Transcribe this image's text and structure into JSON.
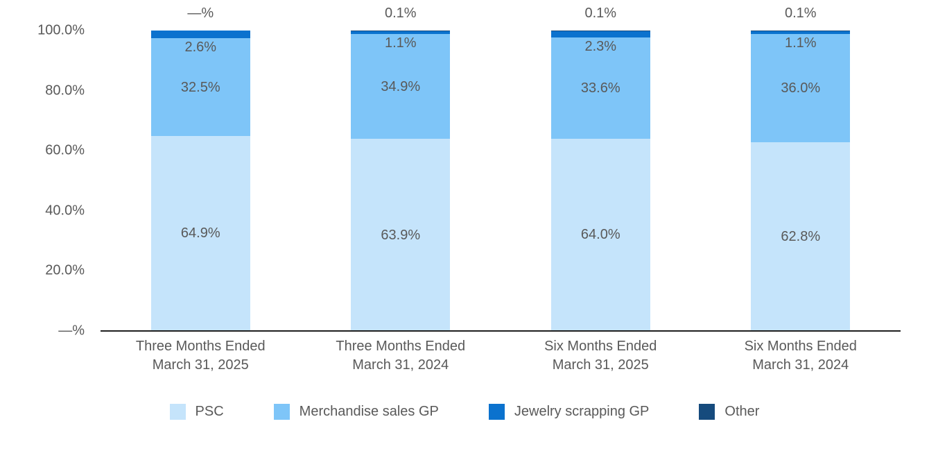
{
  "chart_data": {
    "type": "bar",
    "stacked": true,
    "title": "",
    "unit": "%",
    "categories": [
      {
        "line1": "Three Months Ended",
        "line2": "March 31, 2025"
      },
      {
        "line1": "Three Months Ended",
        "line2": "March 31, 2024"
      },
      {
        "line1": "Six Months Ended",
        "line2": "March 31, 2025"
      },
      {
        "line1": "Six Months Ended",
        "line2": "March 31, 2024"
      }
    ],
    "series": [
      {
        "name": "PSC",
        "color": "#c5e4fb",
        "values": [
          64.9,
          63.9,
          64.0,
          62.8
        ],
        "labels": [
          "64.9%",
          "63.9%",
          "64.0%",
          "62.8%"
        ],
        "label_placement": "center"
      },
      {
        "name": "Merchandise sales GP",
        "color": "#7ec5f8",
        "values": [
          32.5,
          34.9,
          33.6,
          36.0
        ],
        "labels": [
          "32.5%",
          "34.9%",
          "33.6%",
          "36.0%"
        ],
        "label_placement": "center"
      },
      {
        "name": "Jewelry scrapping GP",
        "color": "#0b72ce",
        "values": [
          2.6,
          1.1,
          2.3,
          1.1
        ],
        "labels": [
          "2.6%",
          "1.1%",
          "2.3%",
          "1.1%"
        ],
        "label_placement": "below-segment"
      },
      {
        "name": "Other",
        "color": "#164b7d",
        "values": [
          0.0,
          0.1,
          0.1,
          0.1
        ],
        "labels": [
          "—%",
          "0.1%",
          "0.1%",
          "0.1%"
        ],
        "label_placement": "above-bar"
      }
    ],
    "y_axis": {
      "min": 0,
      "max": 100,
      "tick_values": [
        100,
        80,
        60,
        40,
        20,
        0
      ],
      "tick_labels": [
        "100.0%",
        "80.0%",
        "60.0%",
        "40.0%",
        "20.0%",
        "—%"
      ],
      "gridlines": false
    },
    "legend": {
      "position": "bottom",
      "entries": [
        "PSC",
        "Merchandise sales GP",
        "Jewelry scrapping GP",
        "Other"
      ]
    },
    "colors": {
      "psc": "#c5e4fb",
      "merchandise_sales_gp": "#7ec5f8",
      "jewelry_scrapping_gp": "#0b72ce",
      "other": "#164b7d",
      "label_text": "#595959",
      "axis_line": "#1f1f1f"
    }
  }
}
